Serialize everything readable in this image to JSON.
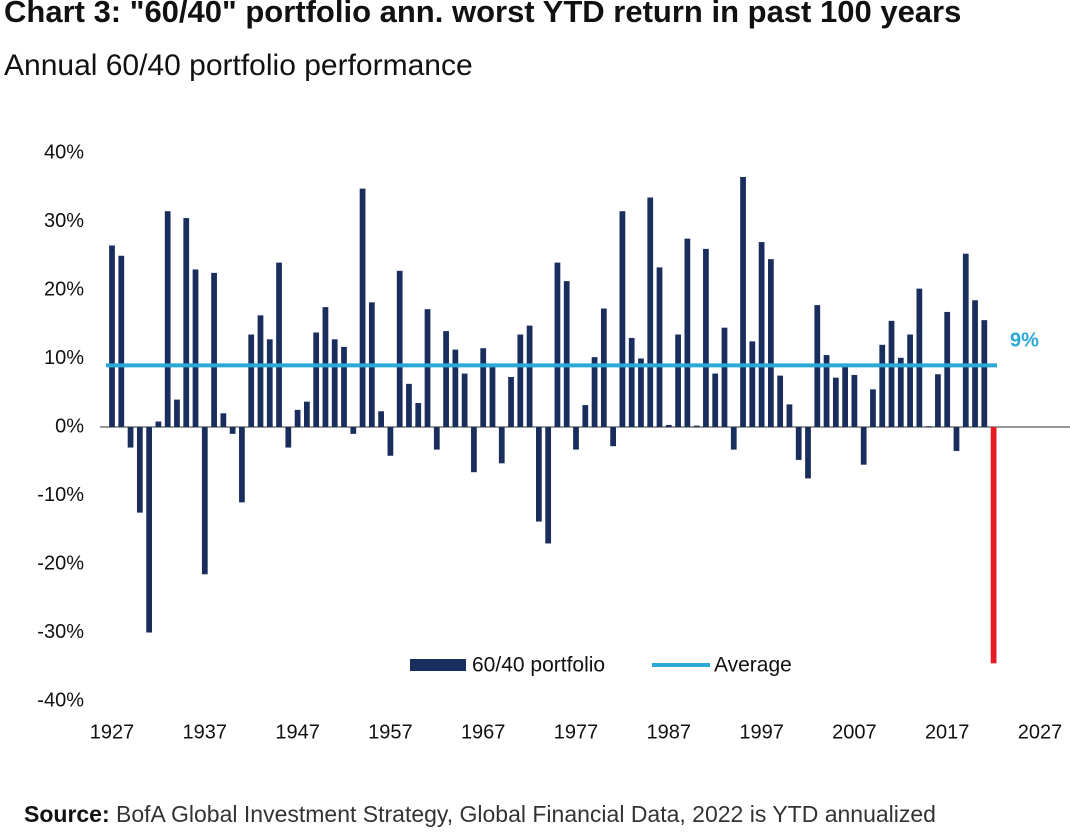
{
  "chart_data": {
    "type": "bar",
    "title": "Chart 3: \"60/40\" portfolio ann. worst YTD return in past 100 years",
    "subtitle": "Annual 60/40 portfolio performance",
    "source_label": "Source:",
    "source": "BofA Global Investment Strategy, Global Financial Data, 2022 is YTD annualized",
    "x": [
      1927,
      1928,
      1929,
      1930,
      1931,
      1932,
      1933,
      1934,
      1935,
      1936,
      1937,
      1938,
      1939,
      1940,
      1941,
      1942,
      1943,
      1944,
      1945,
      1946,
      1947,
      1948,
      1949,
      1950,
      1951,
      1952,
      1953,
      1954,
      1955,
      1956,
      1957,
      1958,
      1959,
      1960,
      1961,
      1962,
      1963,
      1964,
      1965,
      1966,
      1967,
      1968,
      1969,
      1970,
      1971,
      1972,
      1973,
      1974,
      1975,
      1976,
      1977,
      1978,
      1979,
      1980,
      1981,
      1982,
      1983,
      1984,
      1985,
      1986,
      1987,
      1988,
      1989,
      1990,
      1991,
      1992,
      1993,
      1994,
      1995,
      1996,
      1997,
      1998,
      1999,
      2000,
      2001,
      2002,
      2003,
      2004,
      2005,
      2006,
      2007,
      2008,
      2009,
      2010,
      2011,
      2012,
      2013,
      2014,
      2015,
      2016,
      2017,
      2018,
      2019,
      2020,
      2021,
      2022
    ],
    "series": [
      {
        "name": "60/40 portfolio",
        "color": "#1a2e5e",
        "values": [
          26.5,
          25,
          -3,
          -12.5,
          -30,
          0.8,
          31.5,
          4,
          30.5,
          23,
          -21.5,
          22.5,
          2,
          -1,
          -11,
          13.5,
          16.3,
          12.8,
          24,
          -3,
          2.5,
          3.7,
          13.8,
          17.5,
          12.8,
          11.7,
          -1,
          34.8,
          18.2,
          2.3,
          -4.2,
          22.8,
          6.3,
          3.5,
          17.2,
          -3.3,
          14,
          11.3,
          7.8,
          -6.6,
          11.5,
          8.8,
          -5.3,
          7.3,
          13.5,
          14.8,
          -13.8,
          -17,
          24,
          21.3,
          -3.3,
          3.2,
          10.2,
          17.3,
          -2.8,
          31.5,
          13,
          10,
          33.5,
          23.3,
          0.3,
          13.5,
          27.5,
          0.2,
          26,
          7.8,
          14.5,
          -3.3,
          36.5,
          12.5,
          27,
          24.5,
          7.5,
          3.3,
          -4.8,
          -7.5,
          17.8,
          10.5,
          7.2,
          9.2,
          7.6,
          -5.5,
          5.5,
          12,
          15.5,
          10.1,
          13.5,
          20.2,
          0.1,
          7.7,
          16.8,
          -3.5,
          25.3,
          18.5,
          15.6,
          -34.5
        ],
        "point_colors": [
          "#1a2e5e",
          "#1a2e5e",
          "#1a2e5e",
          "#1a2e5e",
          "#1a2e5e",
          "#1a2e5e",
          "#1a2e5e",
          "#1a2e5e",
          "#1a2e5e",
          "#1a2e5e",
          "#1a2e5e",
          "#1a2e5e",
          "#1a2e5e",
          "#1a2e5e",
          "#1a2e5e",
          "#1a2e5e",
          "#1a2e5e",
          "#1a2e5e",
          "#1a2e5e",
          "#1a2e5e",
          "#1a2e5e",
          "#1a2e5e",
          "#1a2e5e",
          "#1a2e5e",
          "#1a2e5e",
          "#1a2e5e",
          "#1a2e5e",
          "#1a2e5e",
          "#1a2e5e",
          "#1a2e5e",
          "#1a2e5e",
          "#1a2e5e",
          "#1a2e5e",
          "#1a2e5e",
          "#1a2e5e",
          "#1a2e5e",
          "#1a2e5e",
          "#1a2e5e",
          "#1a2e5e",
          "#1a2e5e",
          "#1a2e5e",
          "#1a2e5e",
          "#1a2e5e",
          "#1a2e5e",
          "#1a2e5e",
          "#1a2e5e",
          "#1a2e5e",
          "#1a2e5e",
          "#1a2e5e",
          "#1a2e5e",
          "#1a2e5e",
          "#1a2e5e",
          "#1a2e5e",
          "#1a2e5e",
          "#1a2e5e",
          "#1a2e5e",
          "#1a2e5e",
          "#1a2e5e",
          "#1a2e5e",
          "#1a2e5e",
          "#1a2e5e",
          "#1a2e5e",
          "#1a2e5e",
          "#1a2e5e",
          "#1a2e5e",
          "#1a2e5e",
          "#1a2e5e",
          "#1a2e5e",
          "#1a2e5e",
          "#1a2e5e",
          "#1a2e5e",
          "#1a2e5e",
          "#1a2e5e",
          "#1a2e5e",
          "#1a2e5e",
          "#1a2e5e",
          "#1a2e5e",
          "#1a2e5e",
          "#1a2e5e",
          "#1a2e5e",
          "#1a2e5e",
          "#1a2e5e",
          "#1a2e5e",
          "#1a2e5e",
          "#1a2e5e",
          "#1a2e5e",
          "#1a2e5e",
          "#1a2e5e",
          "#1a2e5e",
          "#1a2e5e",
          "#1a2e5e",
          "#1a2e5e",
          "#1a2e5e",
          "#1a2e5e",
          "#1a2e5e",
          "#e31b23"
        ]
      }
    ],
    "average": {
      "name": "Average",
      "value": 9,
      "value_label": "9%",
      "color": "#2aa8d6"
    },
    "xlim": [
      1927,
      2027
    ],
    "xticks": [
      1927,
      1937,
      1947,
      1957,
      1967,
      1977,
      1987,
      1997,
      2007,
      2017,
      2027
    ],
    "ylim": [
      -40,
      40
    ],
    "yticks": [
      {
        "value": -40,
        "label": "-40%"
      },
      {
        "value": -30,
        "label": "-30%"
      },
      {
        "value": -20,
        "label": "-20%"
      },
      {
        "value": -10,
        "label": "-10%"
      },
      {
        "value": 0,
        "label": "0%"
      },
      {
        "value": 10,
        "label": "10%"
      },
      {
        "value": 20,
        "label": "20%"
      },
      {
        "value": 30,
        "label": "30%"
      },
      {
        "value": 40,
        "label": "40%"
      }
    ],
    "grid": false,
    "legend": "bottom"
  }
}
